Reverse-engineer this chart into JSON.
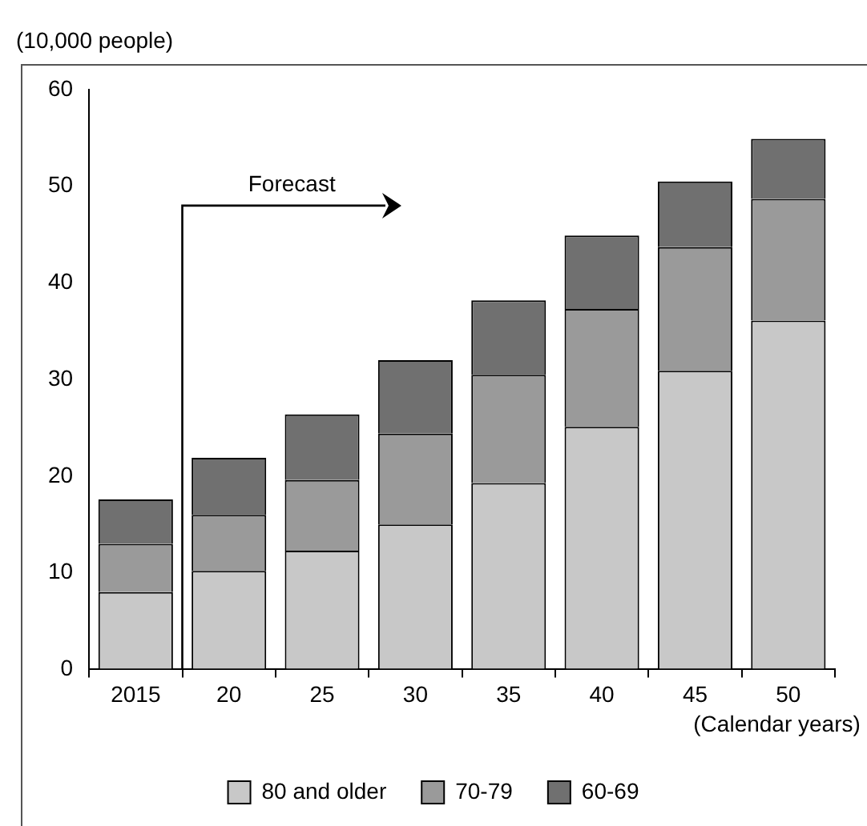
{
  "chart_data": {
    "type": "bar",
    "stacked": true,
    "ylabel": "(10,000 people)",
    "xlabel": "(Calendar years)",
    "categories": [
      "2015",
      "20",
      "25",
      "30",
      "35",
      "40",
      "45",
      "50"
    ],
    "series": [
      {
        "name": "80 and older",
        "color": "#c8c8c8",
        "values": [
          8,
          10.2,
          12.3,
          15,
          19.3,
          25.1,
          30.9,
          36.1
        ]
      },
      {
        "name": "70-79",
        "color": "#9a9a9a",
        "values": [
          5,
          5.8,
          7.3,
          9.4,
          11.2,
          12.2,
          12.8,
          12.6
        ]
      },
      {
        "name": "60-69",
        "color": "#707070",
        "values": [
          4.6,
          5.9,
          6.8,
          7.6,
          7.7,
          7.6,
          6.8,
          6.2
        ]
      }
    ],
    "ylim": [
      0,
      60
    ],
    "yticks": [
      0,
      10,
      20,
      30,
      40,
      50,
      60
    ],
    "annotations": [
      "Forecast"
    ],
    "grid": false,
    "legend": "bottom"
  }
}
